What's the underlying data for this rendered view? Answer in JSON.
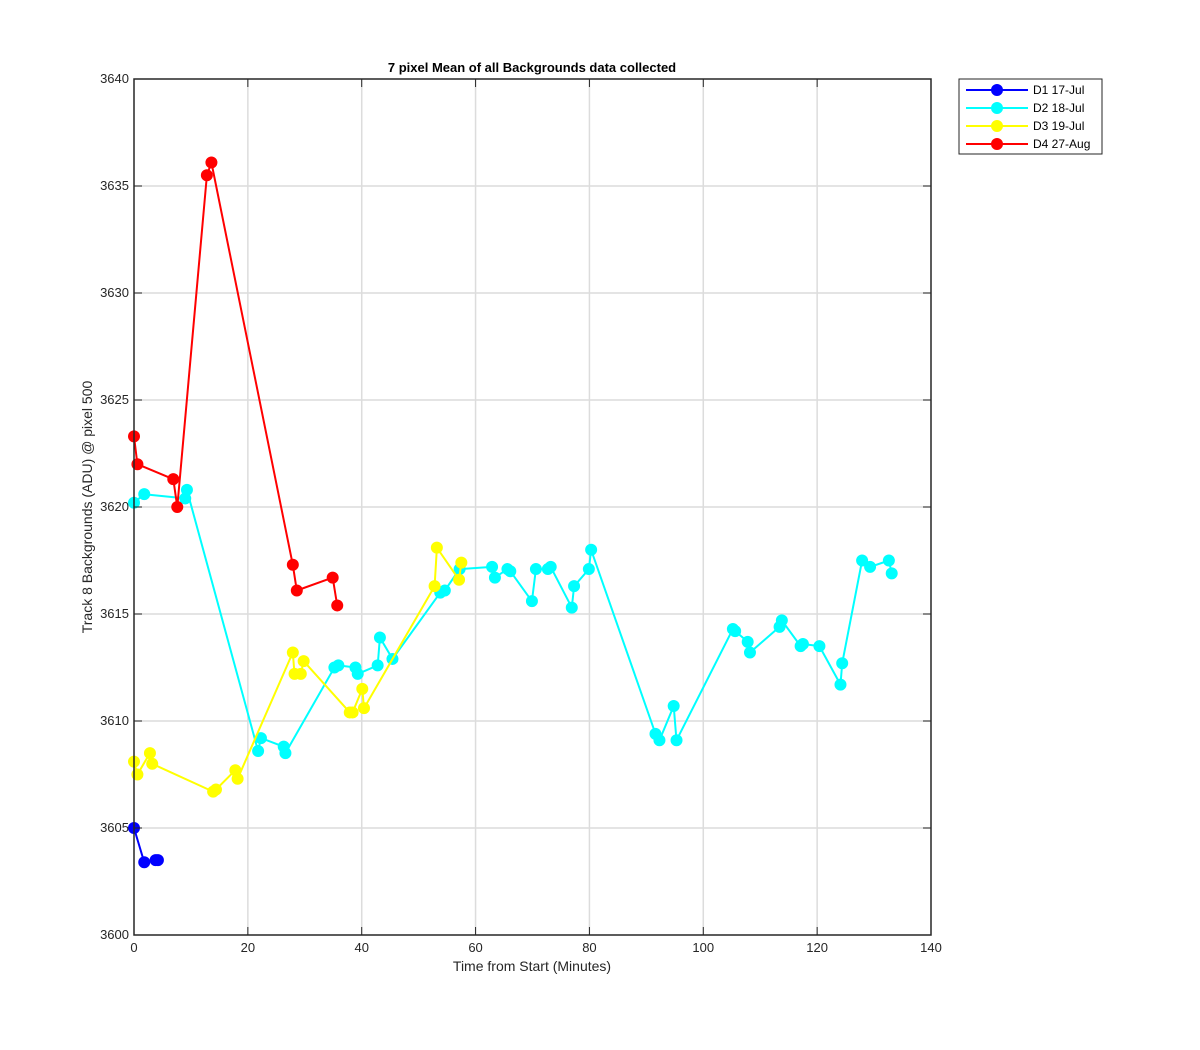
{
  "chart_data": {
    "type": "line",
    "title": "7 pixel Mean of all Backgrounds data collected",
    "xlabel": "Time from Start (Minutes)",
    "ylabel": "Track 8 Backgrounds (ADU) @ pixel 500",
    "xlim": [
      0,
      140
    ],
    "ylim": [
      3600,
      3640
    ],
    "xticks": [
      0,
      20,
      40,
      60,
      80,
      100,
      120,
      140
    ],
    "yticks": [
      3600,
      3605,
      3610,
      3615,
      3620,
      3625,
      3630,
      3635,
      3640
    ],
    "grid": true,
    "legend_position": "outside top-right",
    "series": [
      {
        "name": "D1 17-Jul",
        "color": "#0000ff",
        "x": [
          0.0,
          1.8,
          3.8,
          4.2
        ],
        "y": [
          3605.0,
          3603.4,
          3603.5,
          3603.5
        ]
      },
      {
        "name": "D2 18-Jul",
        "color": "#00ffff",
        "x": [
          0.0,
          1.8,
          9.0,
          9.3,
          21.8,
          22.3,
          26.3,
          26.6,
          35.2,
          35.9,
          38.9,
          39.3,
          42.8,
          43.2,
          45.4,
          53.8,
          54.6,
          57.2,
          62.9,
          63.4,
          65.6,
          66.1,
          69.9,
          70.6,
          72.7,
          73.2,
          76.9,
          77.3,
          79.9,
          80.3,
          91.6,
          92.3,
          94.8,
          95.3,
          105.2,
          105.6,
          107.8,
          108.2,
          113.4,
          113.8,
          117.1,
          117.5,
          120.4,
          124.1,
          124.4,
          127.9,
          129.3,
          132.6,
          133.1
        ],
        "y": [
          3620.2,
          3620.6,
          3620.4,
          3620.8,
          3608.6,
          3609.2,
          3608.8,
          3608.5,
          3612.5,
          3612.6,
          3612.5,
          3612.2,
          3612.6,
          3613.9,
          3612.9,
          3616.0,
          3616.1,
          3617.1,
          3617.2,
          3616.7,
          3617.1,
          3617.0,
          3615.6,
          3617.1,
          3617.1,
          3617.2,
          3615.3,
          3616.3,
          3617.1,
          3618.0,
          3609.4,
          3609.1,
          3610.7,
          3609.1,
          3614.3,
          3614.2,
          3613.7,
          3613.2,
          3614.4,
          3614.7,
          3613.5,
          3613.6,
          3613.5,
          3611.7,
          3612.7,
          3617.5,
          3617.2,
          3617.5,
          3616.9
        ]
      },
      {
        "name": "D3 19-Jul",
        "color": "#ffff00",
        "x": [
          0.0,
          0.6,
          2.8,
          3.2,
          13.9,
          14.4,
          17.8,
          18.2,
          27.9,
          28.2,
          29.3,
          29.8,
          37.9,
          38.4,
          40.1,
          40.4,
          52.8,
          53.2,
          57.1,
          57.5
        ],
        "y": [
          3608.1,
          3607.5,
          3608.5,
          3608.0,
          3606.7,
          3606.8,
          3607.7,
          3607.3,
          3613.2,
          3612.2,
          3612.2,
          3612.8,
          3610.4,
          3610.4,
          3611.5,
          3610.6,
          3616.3,
          3618.1,
          3616.6,
          3617.4
        ]
      },
      {
        "name": "D4 27-Aug",
        "color": "#ff0000",
        "x": [
          0.0,
          0.6,
          6.9,
          7.6,
          12.8,
          13.6,
          27.9,
          28.6,
          34.9,
          35.7
        ],
        "y": [
          3623.3,
          3622.0,
          3621.3,
          3620.0,
          3635.5,
          3636.1,
          3617.3,
          3616.1,
          3616.7,
          3615.4
        ]
      }
    ]
  }
}
